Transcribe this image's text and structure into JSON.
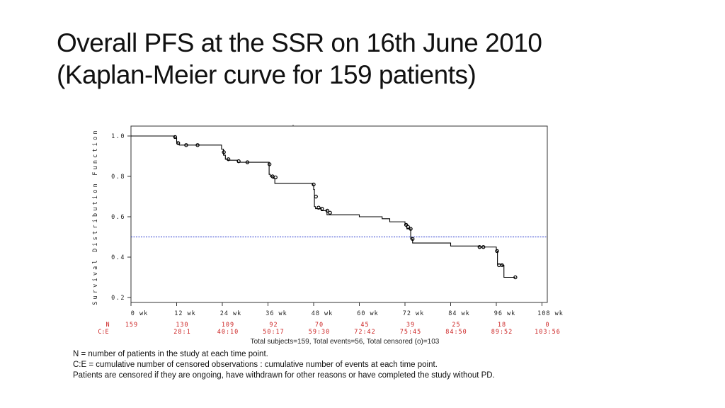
{
  "slide": {
    "title_line1": "Overall PFS at the SSR on 16th June 2010",
    "title_line2": "(Kaplan-Meier curve for 159 patients)"
  },
  "chart_data": {
    "type": "line",
    "ylabel": "Survival Distribution Function",
    "xlim": [
      0,
      108
    ],
    "ylim": [
      0.2,
      1.0
    ],
    "x_ticks": [
      0,
      12,
      24,
      36,
      48,
      60,
      72,
      84,
      96,
      108
    ],
    "x_tick_labels": [
      "0 wk",
      "12 wk",
      "24 wk",
      "36 wk",
      "48 wk",
      "60 wk",
      "72 wk",
      "84 wk",
      "96 wk",
      "108 wk"
    ],
    "y_ticks": [
      0.2,
      0.4,
      0.6,
      0.8,
      1.0
    ],
    "y_tick_labels": [
      "0.2",
      "0.4",
      "0.6",
      "0.8",
      "1.0"
    ],
    "reference_line": {
      "y": 0.5,
      "color": "#2233cc",
      "style": "dotted"
    },
    "series": [
      {
        "color": "#000000",
        "style": "step",
        "x": [
          0,
          11.5,
          12,
          12.3,
          12.7,
          14.5,
          23.8,
          24.3,
          24.8,
          25.5,
          28,
          36.3,
          36.6,
          37.3,
          37.8,
          47.8,
          48,
          48.2,
          48.5,
          50,
          51.5,
          60,
          66,
          68,
          72,
          72.5,
          73.5,
          74,
          84,
          91.5,
          96,
          96.3,
          97.5,
          98,
          101
        ],
        "y": [
          1.0,
          0.99,
          0.97,
          0.96,
          0.955,
          0.955,
          0.935,
          0.905,
          0.885,
          0.88,
          0.87,
          0.81,
          0.8,
          0.79,
          0.765,
          0.755,
          0.735,
          0.65,
          0.64,
          0.63,
          0.61,
          0.6,
          0.59,
          0.575,
          0.56,
          0.54,
          0.49,
          0.47,
          0.455,
          0.45,
          0.43,
          0.365,
          0.36,
          0.3,
          0.3
        ],
        "censored": [
          [
            11.6,
            0.995
          ],
          [
            12.4,
            0.965
          ],
          [
            14.5,
            0.955
          ],
          [
            17.5,
            0.955
          ],
          [
            24.4,
            0.92
          ],
          [
            25.6,
            0.885
          ],
          [
            28.3,
            0.875
          ],
          [
            30.6,
            0.87
          ],
          [
            36.4,
            0.86
          ],
          [
            37.2,
            0.8
          ],
          [
            38.0,
            0.795
          ],
          [
            48.0,
            0.76
          ],
          [
            48.6,
            0.7
          ],
          [
            49.3,
            0.645
          ],
          [
            50.2,
            0.64
          ],
          [
            51.6,
            0.63
          ],
          [
            52.3,
            0.62
          ],
          [
            72.3,
            0.56
          ],
          [
            72.8,
            0.55
          ],
          [
            73.5,
            0.54
          ],
          [
            74.0,
            0.49
          ],
          [
            91.6,
            0.45
          ],
          [
            92.6,
            0.45
          ],
          [
            96.2,
            0.43
          ],
          [
            96.7,
            0.36
          ],
          [
            97.5,
            0.36
          ],
          [
            101.0,
            0.3
          ]
        ]
      }
    ],
    "risk_table": {
      "row_labels": [
        "N",
        "C:E"
      ],
      "N": [
        "159",
        "130",
        "109",
        "92",
        "70",
        "45",
        "39",
        "25",
        "18",
        "0"
      ],
      "CE": [
        "",
        "28:1",
        "40:10",
        "50:17",
        "59:30",
        "72:42",
        "75:45",
        "84:50",
        "89:52",
        "103:56"
      ],
      "color": "#cc2222"
    },
    "summary": "Total subjects=159, Total events=56, Total censored (o)=103"
  },
  "notes": [
    "N = number of patients in the study at each time point.",
    "C:E = cumulative number of censored observations : cumulative number of events at each time point.",
    "Patients are censored if they are ongoing, have withdrawn for other reasons or have completed the study without PD."
  ]
}
